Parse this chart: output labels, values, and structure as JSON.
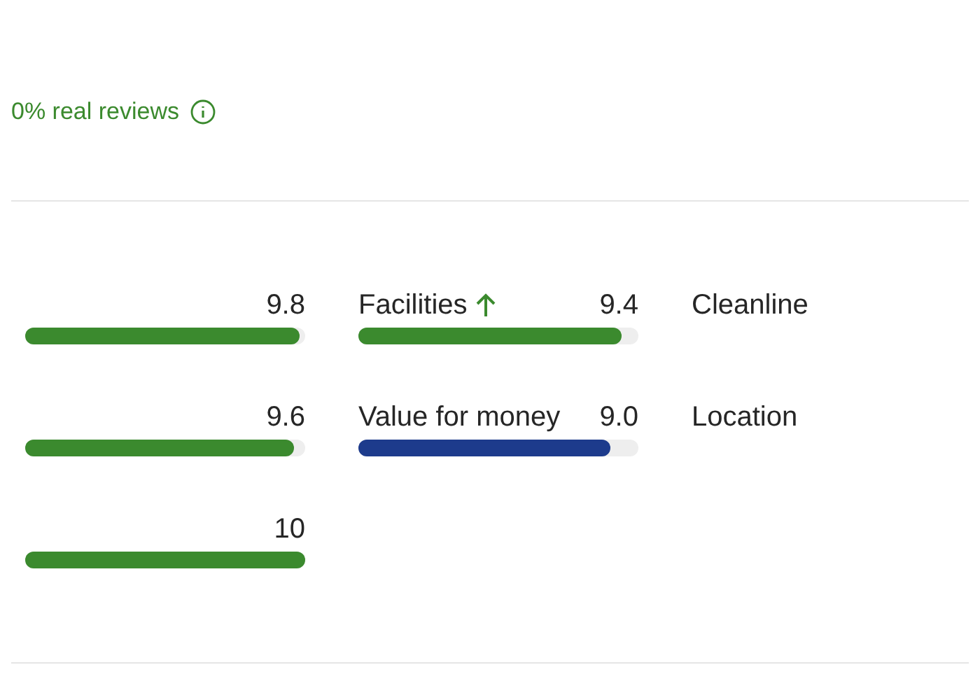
{
  "chart_data": [
    {
      "type": "bar",
      "orientation": "horizontal",
      "categories": [
        null,
        null,
        null
      ],
      "values": [
        9.8,
        9.6,
        10
      ],
      "value_labels": [
        "9.8",
        "9.6",
        "10"
      ],
      "colors": [
        "#3b8a2e",
        "#3b8a2e",
        "#3b8a2e"
      ],
      "xlim": [
        0,
        10
      ],
      "annotations": [
        "0% real reviews"
      ]
    },
    {
      "type": "bar",
      "orientation": "horizontal",
      "categories": [
        "Facilities",
        "Value for money"
      ],
      "values": [
        9.4,
        9.0
      ],
      "value_labels": [
        "9.4",
        "9.0"
      ],
      "colors": [
        "#3b8a2e",
        "#1d3b8c"
      ],
      "xlim": [
        0,
        10
      ]
    },
    {
      "type": "other",
      "categories": [
        "Cleanline",
        "Location"
      ]
    }
  ]
}
